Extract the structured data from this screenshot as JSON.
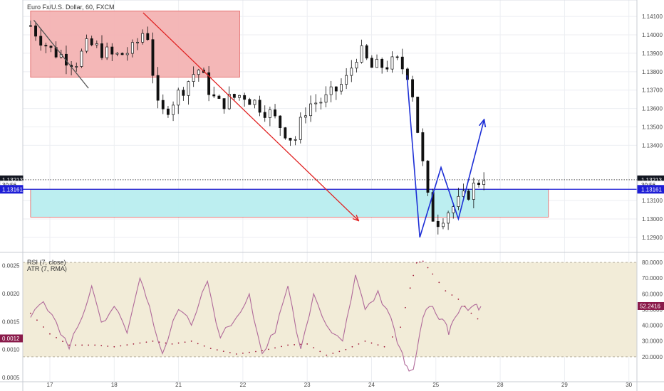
{
  "chart_data": [
    {
      "type": "candlestick",
      "title": "Euro Fx/U.S. Dollar, 60, FXCM",
      "ylim": [
        1.1283,
        1.1417
      ],
      "y_ticks": [
        "1.14100",
        "1.14000",
        "1.13900",
        "1.13800",
        "1.13700",
        "1.13600",
        "1.13500",
        "1.13400",
        "1.13100",
        "1.13000",
        "1.12900"
      ],
      "x_ticks": [
        "17",
        "18",
        "21",
        "22",
        "23",
        "24",
        "25",
        "28",
        "29",
        "30"
      ],
      "price_badges": [
        {
          "label": "1.13213",
          "value": 1.13213,
          "side": "both",
          "color": "#131722"
        },
        {
          "label": "30:56",
          "value": 1.13185,
          "side": "both",
          "color": "#ffffff",
          "text_color": "#131722"
        },
        {
          "label": "1.13161",
          "value": 1.13161,
          "side": "both",
          "color": "#1d1dd6"
        }
      ],
      "close_path": [
        {
          "day": 16.7,
          "price": 1.1405
        },
        {
          "day": 17.0,
          "price": 1.1392
        },
        {
          "day": 17.4,
          "price": 1.1385
        },
        {
          "day": 17.6,
          "price": 1.1395
        },
        {
          "day": 18.0,
          "price": 1.1388
        },
        {
          "day": 18.3,
          "price": 1.1392
        },
        {
          "day": 18.5,
          "price": 1.1405
        },
        {
          "day": 18.7,
          "price": 1.1355
        },
        {
          "day": 19.0,
          "price": 1.1368
        },
        {
          "day": 19.3,
          "price": 1.1382
        },
        {
          "day": 19.6,
          "price": 1.1362
        },
        {
          "day": 20.0,
          "price": 1.1368
        },
        {
          "day": 20.4,
          "price": 1.1358
        },
        {
          "day": 20.8,
          "price": 1.1342
        },
        {
          "day": 21.0,
          "price": 1.1362
        },
        {
          "day": 21.3,
          "price": 1.1365
        },
        {
          "day": 21.6,
          "price": 1.1375
        },
        {
          "day": 21.8,
          "price": 1.1392
        },
        {
          "day": 22.0,
          "price": 1.1382
        },
        {
          "day": 22.4,
          "price": 1.1385
        },
        {
          "day": 22.6,
          "price": 1.1378
        },
        {
          "day": 22.75,
          "price": 1.134
        },
        {
          "day": 22.9,
          "price": 1.1305
        },
        {
          "day": 23.0,
          "price": 1.1298
        },
        {
          "day": 23.2,
          "price": 1.1305
        },
        {
          "day": 23.4,
          "price": 1.131
        },
        {
          "day": 23.6,
          "price": 1.1318
        },
        {
          "day": 23.75,
          "price": 1.1324
        }
      ],
      "rectangles": [
        {
          "name": "resistance-zone",
          "from_day": 16.7,
          "to_day": 19.95,
          "top": 1.1413,
          "bottom": 1.1377,
          "fill": "#f4b4b4",
          "stroke": "#e05555"
        },
        {
          "name": "support-zone",
          "from_day": 16.7,
          "to_day": 24.75,
          "top": 1.13161,
          "bottom": 1.1301,
          "fill": "#b9eef0",
          "stroke": "#e05555"
        }
      ],
      "trend_lines": [
        {
          "color": "#e02020",
          "arrow": true,
          "points": [
            {
              "day": 18.45,
              "price": 1.1412
            },
            {
              "day": 21.8,
              "price": 1.1299
            }
          ]
        },
        {
          "color": "#555555",
          "arrow": false,
          "points": [
            {
              "day": 16.75,
              "price": 1.1408
            },
            {
              "day": 17.6,
              "price": 1.1371
            }
          ]
        }
      ],
      "projection": {
        "color": "#1d2fd6",
        "points": [
          {
            "day": 22.55,
            "price": 1.1378
          },
          {
            "day": 22.75,
            "price": 1.129
          },
          {
            "day": 23.08,
            "price": 1.1328
          },
          {
            "day": 23.35,
            "price": 1.13
          },
          {
            "day": 23.75,
            "price": 1.1354
          }
        ]
      },
      "horizontal_lines": [
        {
          "value": 1.13213,
          "color": "#555555",
          "style": "dotted"
        },
        {
          "value": 1.13161,
          "color": "#1d1dd6",
          "style": "solid"
        }
      ]
    },
    {
      "type": "line",
      "legend": [
        "RSI (7, close)",
        "ATR (7, RMA)"
      ],
      "left_axis": {
        "ylim": [
          0.00045,
          0.0027
        ],
        "ticks": [
          "0.0025",
          "0.0020",
          "0.0015",
          "0.0010",
          "0.0005"
        ]
      },
      "right_axis": {
        "ylim": [
          5,
          85
        ],
        "ticks": [
          "80.0000",
          "70.0000",
          "60.0000",
          "50.0000",
          "40.0000",
          "30.0000",
          "20.0000"
        ]
      },
      "rsi_band": {
        "top": 80,
        "bottom": 20,
        "fill": "#f2ecd8"
      },
      "badges": [
        {
          "label": "0.0012",
          "axis": "left",
          "value": 0.0012,
          "color": "#8a1a4a"
        },
        {
          "label": "52.2416",
          "axis": "right",
          "value": 52.2416,
          "color": "#8a1a4a"
        }
      ],
      "series": [
        {
          "name": "RSI (7, close)",
          "axis": "right",
          "color": "#b06a9a",
          "values": [
            {
              "day": 16.7,
              "value": 45
            },
            {
              "day": 16.9,
              "value": 55
            },
            {
              "day": 17.1,
              "value": 42
            },
            {
              "day": 17.3,
              "value": 25
            },
            {
              "day": 17.5,
              "value": 45
            },
            {
              "day": 17.65,
              "value": 65
            },
            {
              "day": 17.8,
              "value": 42
            },
            {
              "day": 18.0,
              "value": 52
            },
            {
              "day": 18.2,
              "value": 35
            },
            {
              "day": 18.4,
              "value": 70
            },
            {
              "day": 18.55,
              "value": 52
            },
            {
              "day": 18.75,
              "value": 22
            },
            {
              "day": 19.0,
              "value": 50
            },
            {
              "day": 19.2,
              "value": 40
            },
            {
              "day": 19.45,
              "value": 68
            },
            {
              "day": 19.65,
              "value": 32
            },
            {
              "day": 19.9,
              "value": 45
            },
            {
              "day": 20.1,
              "value": 60
            },
            {
              "day": 20.3,
              "value": 22
            },
            {
              "day": 20.5,
              "value": 35
            },
            {
              "day": 20.7,
              "value": 65
            },
            {
              "day": 20.9,
              "value": 25
            },
            {
              "day": 21.1,
              "value": 60
            },
            {
              "day": 21.3,
              "value": 40
            },
            {
              "day": 21.55,
              "value": 30
            },
            {
              "day": 21.75,
              "value": 72
            },
            {
              "day": 21.9,
              "value": 50
            },
            {
              "day": 22.1,
              "value": 62
            },
            {
              "day": 22.3,
              "value": 45
            },
            {
              "day": 22.45,
              "value": 25
            },
            {
              "day": 22.55,
              "value": 14
            },
            {
              "day": 22.65,
              "value": 12
            },
            {
              "day": 22.8,
              "value": 45
            },
            {
              "day": 22.95,
              "value": 52
            },
            {
              "day": 23.1,
              "value": 44
            },
            {
              "day": 23.2,
              "value": 34
            },
            {
              "day": 23.3,
              "value": 45
            },
            {
              "day": 23.45,
              "value": 52
            },
            {
              "day": 23.6,
              "value": 53
            },
            {
              "day": 23.7,
              "value": 52
            }
          ]
        },
        {
          "name": "ATR (7, RMA)",
          "axis": "left",
          "color": "#a01e3c",
          "style": "dotted",
          "values": [
            {
              "day": 16.7,
              "value": 0.00165
            },
            {
              "day": 17.0,
              "value": 0.00128
            },
            {
              "day": 17.3,
              "value": 0.00108
            },
            {
              "day": 17.7,
              "value": 0.00108
            },
            {
              "day": 18.0,
              "value": 0.00105
            },
            {
              "day": 18.3,
              "value": 0.0011
            },
            {
              "day": 18.6,
              "value": 0.00115
            },
            {
              "day": 18.9,
              "value": 0.0011
            },
            {
              "day": 19.2,
              "value": 0.00115
            },
            {
              "day": 19.5,
              "value": 0.00102
            },
            {
              "day": 19.9,
              "value": 0.00092
            },
            {
              "day": 20.3,
              "value": 0.00098
            },
            {
              "day": 20.7,
              "value": 0.00108
            },
            {
              "day": 21.0,
              "value": 0.0011
            },
            {
              "day": 21.3,
              "value": 0.0009
            },
            {
              "day": 21.6,
              "value": 0.001
            },
            {
              "day": 21.9,
              "value": 0.00115
            },
            {
              "day": 22.2,
              "value": 0.00105
            },
            {
              "day": 22.45,
              "value": 0.0014
            },
            {
              "day": 22.6,
              "value": 0.0021
            },
            {
              "day": 22.7,
              "value": 0.00255
            },
            {
              "day": 22.8,
              "value": 0.00258
            },
            {
              "day": 22.95,
              "value": 0.00235
            },
            {
              "day": 23.15,
              "value": 0.00205
            },
            {
              "day": 23.35,
              "value": 0.0019
            },
            {
              "day": 23.55,
              "value": 0.00165
            },
            {
              "day": 23.75,
              "value": 0.00145
            }
          ]
        }
      ]
    }
  ]
}
